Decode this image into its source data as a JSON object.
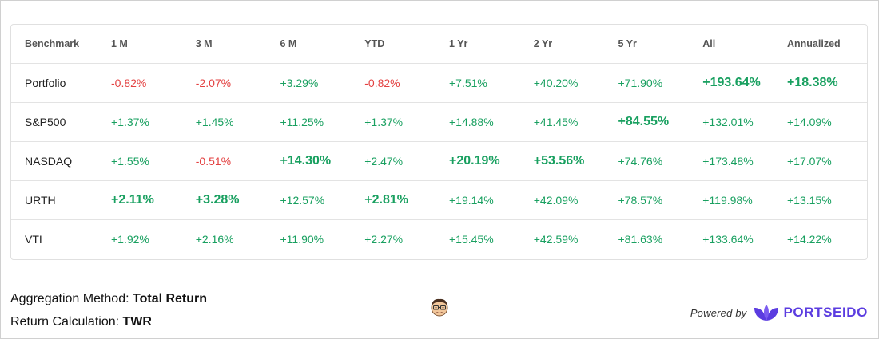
{
  "table": {
    "headers": [
      "Benchmark",
      "1 M",
      "3 M",
      "6 M",
      "YTD",
      "1 Yr",
      "2 Yr",
      "5 Yr",
      "All",
      "Annualized"
    ],
    "rows": [
      {
        "name": "Portfolio",
        "cells": [
          {
            "v": "-0.82%",
            "s": "neg",
            "hl": false
          },
          {
            "v": "-2.07%",
            "s": "neg",
            "hl": false
          },
          {
            "v": "+3.29%",
            "s": "pos",
            "hl": false
          },
          {
            "v": "-0.82%",
            "s": "neg",
            "hl": false
          },
          {
            "v": "+7.51%",
            "s": "pos",
            "hl": false
          },
          {
            "v": "+40.20%",
            "s": "pos",
            "hl": false
          },
          {
            "v": "+71.90%",
            "s": "pos",
            "hl": false
          },
          {
            "v": "+193.64%",
            "s": "pos",
            "hl": true
          },
          {
            "v": "+18.38%",
            "s": "pos",
            "hl": true
          }
        ]
      },
      {
        "name": "S&P500",
        "cells": [
          {
            "v": "+1.37%",
            "s": "pos",
            "hl": false
          },
          {
            "v": "+1.45%",
            "s": "pos",
            "hl": false
          },
          {
            "v": "+11.25%",
            "s": "pos",
            "hl": false
          },
          {
            "v": "+1.37%",
            "s": "pos",
            "hl": false
          },
          {
            "v": "+14.88%",
            "s": "pos",
            "hl": false
          },
          {
            "v": "+41.45%",
            "s": "pos",
            "hl": false
          },
          {
            "v": "+84.55%",
            "s": "pos",
            "hl": true
          },
          {
            "v": "+132.01%",
            "s": "pos",
            "hl": false
          },
          {
            "v": "+14.09%",
            "s": "pos",
            "hl": false
          }
        ]
      },
      {
        "name": "NASDAQ",
        "cells": [
          {
            "v": "+1.55%",
            "s": "pos",
            "hl": false
          },
          {
            "v": "-0.51%",
            "s": "neg",
            "hl": false
          },
          {
            "v": "+14.30%",
            "s": "pos",
            "hl": true
          },
          {
            "v": "+2.47%",
            "s": "pos",
            "hl": false
          },
          {
            "v": "+20.19%",
            "s": "pos",
            "hl": true
          },
          {
            "v": "+53.56%",
            "s": "pos",
            "hl": true
          },
          {
            "v": "+74.76%",
            "s": "pos",
            "hl": false
          },
          {
            "v": "+173.48%",
            "s": "pos",
            "hl": false
          },
          {
            "v": "+17.07%",
            "s": "pos",
            "hl": false
          }
        ]
      },
      {
        "name": "URTH",
        "cells": [
          {
            "v": "+2.11%",
            "s": "pos",
            "hl": true
          },
          {
            "v": "+3.28%",
            "s": "pos",
            "hl": true
          },
          {
            "v": "+12.57%",
            "s": "pos",
            "hl": false
          },
          {
            "v": "+2.81%",
            "s": "pos",
            "hl": true
          },
          {
            "v": "+19.14%",
            "s": "pos",
            "hl": false
          },
          {
            "v": "+42.09%",
            "s": "pos",
            "hl": false
          },
          {
            "v": "+78.57%",
            "s": "pos",
            "hl": false
          },
          {
            "v": "+119.98%",
            "s": "pos",
            "hl": false
          },
          {
            "v": "+13.15%",
            "s": "pos",
            "hl": false
          }
        ]
      },
      {
        "name": "VTI",
        "cells": [
          {
            "v": "+1.92%",
            "s": "pos",
            "hl": false
          },
          {
            "v": "+2.16%",
            "s": "pos",
            "hl": false
          },
          {
            "v": "+11.90%",
            "s": "pos",
            "hl": false
          },
          {
            "v": "+2.27%",
            "s": "pos",
            "hl": false
          },
          {
            "v": "+15.45%",
            "s": "pos",
            "hl": false
          },
          {
            "v": "+42.59%",
            "s": "pos",
            "hl": false
          },
          {
            "v": "+81.63%",
            "s": "pos",
            "hl": false
          },
          {
            "v": "+133.64%",
            "s": "pos",
            "hl": false
          },
          {
            "v": "+14.22%",
            "s": "pos",
            "hl": false
          }
        ]
      }
    ]
  },
  "footer": {
    "aggregation_label": "Aggregation Method: ",
    "aggregation_value": "Total Return",
    "return_label": "Return Calculation: ",
    "return_value": "TWR",
    "avatar_icon": "cartoon-face-avatar",
    "powered_by": "Powered by",
    "brand_name": "PORTSEIDO",
    "brand_icon": "leaf-logo-icon"
  },
  "colors": {
    "positive": "#19a060",
    "negative": "#e34040",
    "brand": "#5b3ce0"
  }
}
